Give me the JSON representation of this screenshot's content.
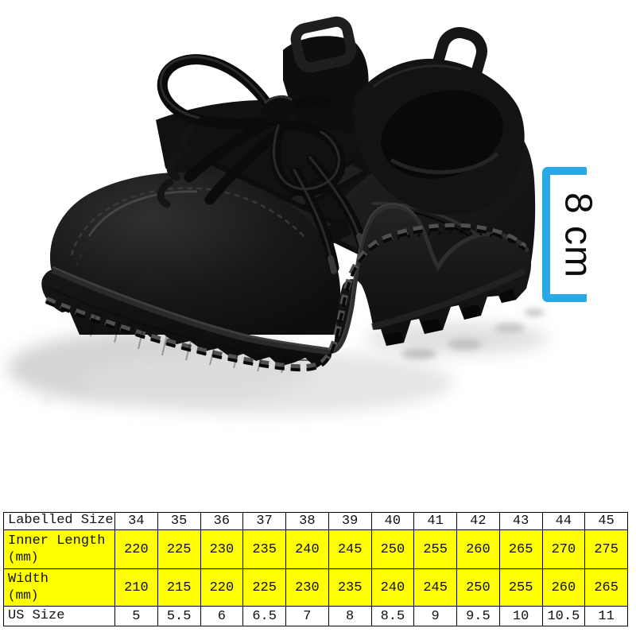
{
  "height_indicator": {
    "label": "8 cm",
    "bracket_color": "#29a9e8"
  },
  "size_table": {
    "highlight_color": "#ffff00",
    "border_color": "#000000",
    "rows": [
      {
        "header": "Labelled Size",
        "header_sub": "",
        "highlight": false,
        "values": [
          "34",
          "35",
          "36",
          "37",
          "38",
          "39",
          "40",
          "41",
          "42",
          "43",
          "44",
          "45"
        ]
      },
      {
        "header": "Inner Length",
        "header_sub": "(mm)",
        "highlight": true,
        "values": [
          "220",
          "225",
          "230",
          "235",
          "240",
          "245",
          "250",
          "255",
          "260",
          "265",
          "270",
          "275"
        ]
      },
      {
        "header": "Width",
        "header_sub": "(mm)",
        "highlight": true,
        "values": [
          "210",
          "215",
          "220",
          "225",
          "230",
          "235",
          "240",
          "245",
          "250",
          "255",
          "260",
          "265"
        ]
      },
      {
        "header": "US Size",
        "header_sub": "",
        "highlight": false,
        "values": [
          "5",
          "5.5",
          "6",
          "6.5",
          "7",
          "8",
          "8.5",
          "9",
          "9.5",
          "10",
          "10.5",
          "11"
        ]
      }
    ]
  }
}
